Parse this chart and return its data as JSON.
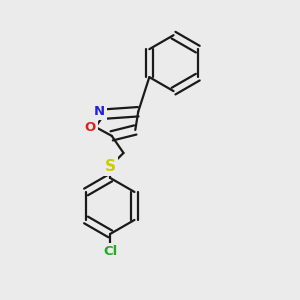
{
  "bg_color": "#ebebeb",
  "bond_color": "#1a1a1a",
  "line_width": 1.6,
  "atom_labels": {
    "N": {
      "color": "#2222dd",
      "fontsize": 9.5
    },
    "O": {
      "color": "#dd2222",
      "fontsize": 9.5
    },
    "S": {
      "color": "#cccc00",
      "fontsize": 11
    },
    "Cl": {
      "color": "#22aa22",
      "fontsize": 9.5
    }
  }
}
